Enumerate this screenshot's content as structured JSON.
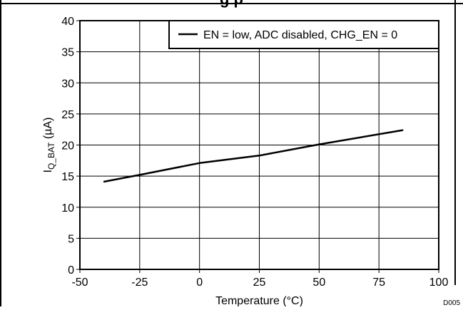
{
  "chart_data": {
    "type": "line",
    "title": "g                                    p",
    "xlabel": "Temperature (°C)",
    "ylabel_main": "I",
    "ylabel_sub": "Q_BAT",
    "ylabel_unit": " (µA)",
    "xlim": [
      -50,
      100
    ],
    "ylim": [
      0,
      40
    ],
    "x_ticks": [
      "-50",
      "-25",
      "0",
      "25",
      "50",
      "75",
      "100"
    ],
    "y_ticks": [
      "0",
      "5",
      "10",
      "15",
      "20",
      "25",
      "30",
      "35",
      "40"
    ],
    "grid": true,
    "legend_position": "top-right",
    "series": [
      {
        "name": "EN = low, ADC disabled, CHG_EN = 0",
        "color": "#000000",
        "x": [
          -40,
          -25,
          0,
          25,
          50,
          85
        ],
        "y": [
          14.1,
          15.2,
          17.1,
          18.3,
          20.1,
          22.4
        ]
      }
    ],
    "figure_code": "D005"
  }
}
